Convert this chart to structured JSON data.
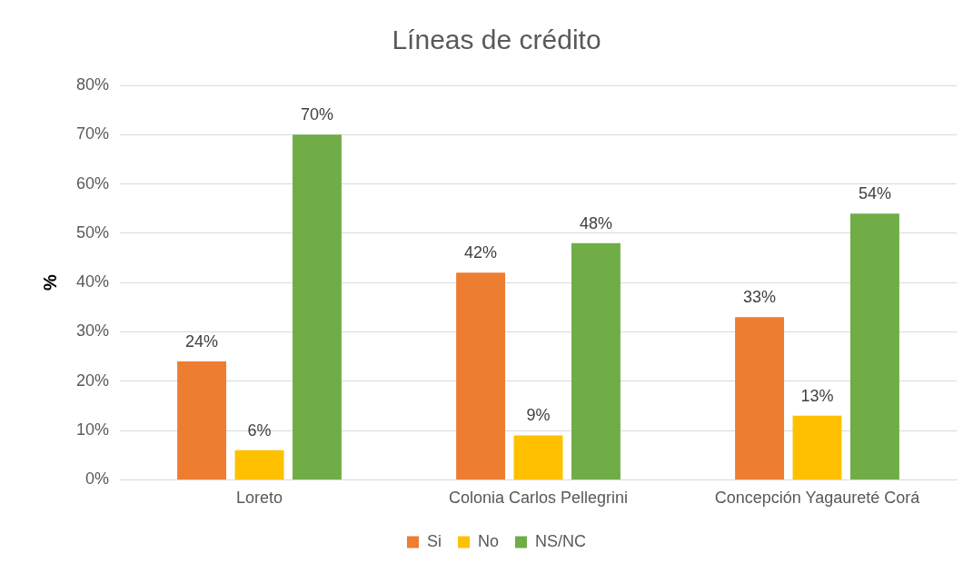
{
  "chart_data": {
    "type": "bar",
    "title": "Líneas de crédito",
    "ylabel": "%",
    "categories": [
      "Loreto",
      "Colonia Carlos Pellegrini",
      "Concepción Yagaureté Corá"
    ],
    "series": [
      {
        "name": "Si",
        "color": "#ed7d31",
        "values": [
          24,
          42,
          33
        ],
        "value_labels": [
          "24%",
          "42%",
          "33%"
        ]
      },
      {
        "name": "No",
        "color": "#ffc000",
        "values": [
          6,
          9,
          13
        ],
        "value_labels": [
          "6%",
          "9%",
          "13%"
        ]
      },
      {
        "name": "NS/NC",
        "color": "#70ad47",
        "values": [
          70,
          48,
          54
        ],
        "value_labels": [
          "70%",
          "48%",
          "54%"
        ]
      }
    ],
    "ylim": [
      0,
      80
    ],
    "yticks": [
      {
        "value": 0,
        "label": "0%"
      },
      {
        "value": 10,
        "label": "10%"
      },
      {
        "value": 20,
        "label": "20%"
      },
      {
        "value": 30,
        "label": "30%"
      },
      {
        "value": 40,
        "label": "40%"
      },
      {
        "value": 50,
        "label": "50%"
      },
      {
        "value": 60,
        "label": "60%"
      },
      {
        "value": 70,
        "label": "70%"
      },
      {
        "value": 80,
        "label": "80%"
      }
    ],
    "grid": "y",
    "legend": "bottom"
  }
}
